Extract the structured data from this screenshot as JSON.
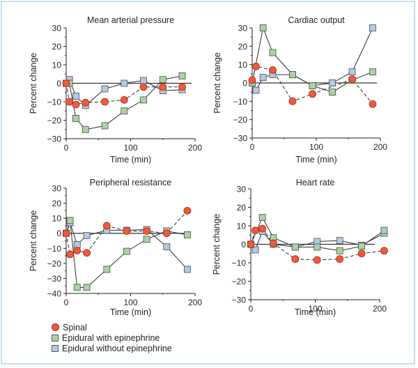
{
  "colors": {
    "spinal": "#ef5a3a",
    "epi_with": "#a8d4a0",
    "epi_without": "#b4c8e6",
    "axis": "#231f20",
    "frame": "#c7dfef"
  },
  "legend": {
    "items": [
      {
        "key": "spinal",
        "label": "Spinal",
        "marker": "circle"
      },
      {
        "key": "epi_with",
        "label": "Epidural with epinephrine",
        "marker": "square"
      },
      {
        "key": "epi_without",
        "label": "Epidural without epinephrine",
        "marker": "square"
      }
    ]
  },
  "chart_data": [
    {
      "type": "line",
      "title": "Mean arterial pressure",
      "xlabel": "Time (min)",
      "ylabel": "Percent change",
      "xlim": [
        0,
        200
      ],
      "ylim": [
        -30,
        30
      ],
      "xticks": [
        0,
        100,
        200
      ],
      "yticks": [
        30,
        20,
        10,
        0,
        -10,
        -20,
        -30
      ],
      "series": [
        {
          "name": "Spinal",
          "key": "spinal",
          "dashed": true,
          "x": [
            0,
            5,
            15,
            30,
            60,
            90,
            120,
            150,
            180
          ],
          "y": [
            0,
            -10,
            -11.5,
            -10.5,
            -10,
            -9,
            -2,
            -2,
            -2
          ]
        },
        {
          "name": "Epidural with epinephrine",
          "key": "epi_with",
          "dashed": false,
          "x": [
            0,
            5,
            15,
            30,
            60,
            90,
            120,
            150,
            180
          ],
          "y": [
            0,
            0,
            -19,
            -25,
            -23,
            -15,
            -9,
            2,
            4
          ]
        },
        {
          "name": "Epidural without epinephrine",
          "key": "epi_without",
          "dashed": false,
          "x": [
            0,
            5,
            15,
            30,
            60,
            90,
            120,
            150,
            180
          ],
          "y": [
            0,
            2,
            -7,
            -12,
            -3,
            0,
            1.5,
            -4,
            -3.5
          ]
        }
      ]
    },
    {
      "type": "line",
      "title": "Cardiac output",
      "xlabel": "Time (min)",
      "ylabel": "Percent change",
      "xlim": [
        0,
        200
      ],
      "ylim": [
        -30,
        30
      ],
      "xticks": [
        0,
        100,
        200
      ],
      "yticks": [
        30,
        20,
        10,
        0,
        -10,
        -20,
        -30
      ],
      "series": [
        {
          "name": "Spinal",
          "key": "spinal",
          "dashed": true,
          "x": [
            0,
            6,
            32,
            63,
            94,
            156,
            188
          ],
          "y": [
            1.5,
            9,
            7,
            -10,
            -6,
            2,
            -11.5
          ]
        },
        {
          "name": "Epidural with epinephrine",
          "key": "epi_with",
          "dashed": false,
          "x": [
            0,
            17,
            32,
            63,
            94,
            125,
            156,
            188
          ],
          "y": [
            0,
            30,
            16.5,
            4.5,
            -1.5,
            -5,
            1.5,
            6
          ]
        },
        {
          "name": "Epidural without epinephrine",
          "key": "epi_without",
          "dashed": false,
          "x": [
            0,
            6,
            17,
            32,
            63,
            94,
            125,
            156,
            188
          ],
          "y": [
            0,
            -4,
            3,
            4.5,
            4.5,
            -1.5,
            0,
            6,
            30
          ]
        }
      ]
    },
    {
      "type": "line",
      "title": "Peripheral resistance",
      "xlabel": "Time (min)",
      "ylabel": "Percent change",
      "xlim": [
        0,
        200
      ],
      "ylim": [
        -40,
        30
      ],
      "xticks": [
        0,
        100,
        200
      ],
      "yticks": [
        30,
        20,
        10,
        0,
        -10,
        -20,
        -30,
        -40
      ],
      "series": [
        {
          "name": "Spinal",
          "key": "spinal",
          "dashed": true,
          "x": [
            0,
            6,
            17,
            32,
            63,
            94,
            125,
            156,
            188
          ],
          "y": [
            0,
            -14,
            -11.5,
            -13,
            5,
            1.5,
            1.5,
            0,
            15
          ]
        },
        {
          "name": "Epidural with epinephrine",
          "key": "epi_with",
          "dashed": false,
          "x": [
            0,
            6,
            17,
            32,
            63,
            94,
            125,
            156,
            188
          ],
          "y": [
            0,
            8.5,
            -36,
            -36,
            -24,
            -12,
            -4,
            1.5,
            -1
          ]
        },
        {
          "name": "Epidural without epinephrine",
          "key": "epi_without",
          "dashed": false,
          "x": [
            0,
            6,
            17,
            32,
            63,
            94,
            125,
            156,
            188
          ],
          "y": [
            0,
            7,
            -7.5,
            -1.5,
            2,
            2,
            2.5,
            -9,
            -24
          ]
        }
      ]
    },
    {
      "type": "line",
      "title": "Heart rate",
      "xlabel": "Time (min)",
      "ylabel": "Percent change",
      "xlim": [
        0,
        200
      ],
      "ylim": [
        -30,
        30
      ],
      "xticks": [
        0,
        100,
        200
      ],
      "yticks": [
        30,
        20,
        10,
        0,
        -10,
        -20,
        -30
      ],
      "series": [
        {
          "name": "Spinal",
          "key": "spinal",
          "dashed": true,
          "x": [
            0,
            7,
            18,
            35,
            69,
            103,
            138,
            172,
            207
          ],
          "y": [
            0,
            7.5,
            8.5,
            0.5,
            -8,
            -8.5,
            -8,
            -5,
            -3.5
          ]
        },
        {
          "name": "Epidural with epinephrine",
          "key": "epi_with",
          "dashed": false,
          "x": [
            0,
            18,
            35,
            69,
            103,
            138,
            172,
            207
          ],
          "y": [
            0,
            14.5,
            3.5,
            -1.5,
            -1.5,
            -3.5,
            -1,
            7.5
          ]
        },
        {
          "name": "Epidural without epinephrine",
          "key": "epi_without",
          "dashed": false,
          "x": [
            0,
            7,
            18,
            35,
            69,
            103,
            138,
            172,
            207
          ],
          "y": [
            0,
            -3,
            7,
            0,
            -1.5,
            1.5,
            2,
            -0.5,
            6
          ]
        }
      ]
    }
  ]
}
